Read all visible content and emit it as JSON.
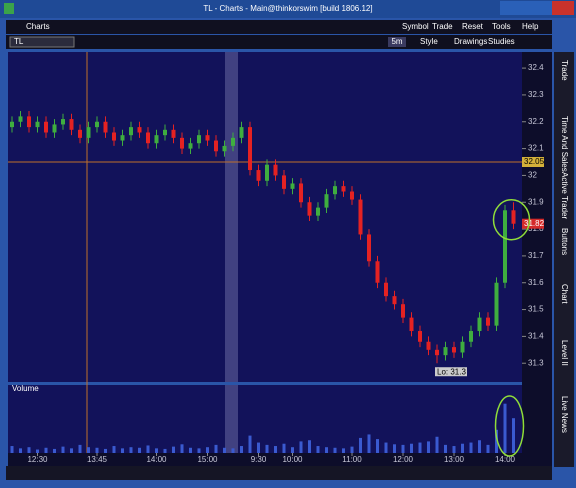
{
  "window": {
    "title": "TL - Charts - Main@thinkorswim [build 1806.12]",
    "tab": "Charts",
    "menu": [
      "Symbol",
      "Trade",
      "Reset",
      "Tools",
      "Help"
    ],
    "symbol": "TL",
    "period": "5m",
    "buttons": [
      "Style",
      "Drawings",
      "Studies"
    ],
    "side_tabs": [
      "Trade",
      "Time And Sales",
      "Active Trader",
      "Buttons",
      "Chart",
      "Level II",
      "Live News"
    ]
  },
  "chart_data": {
    "type": "candlestick",
    "color_up": "#3fae3f",
    "color_down": "#e52222",
    "open": [
      32.18,
      32.2,
      32.22,
      32.18,
      32.2,
      32.16,
      32.19,
      32.21,
      32.17,
      32.14,
      32.18,
      32.2,
      32.16,
      32.13,
      32.15,
      32.18,
      32.16,
      32.12,
      32.15,
      32.17,
      32.14,
      32.1,
      32.12,
      32.15,
      32.13,
      32.09,
      32.11,
      32.14,
      32.18,
      32.02,
      31.98,
      32.04,
      32.0,
      31.95,
      31.97,
      31.9,
      31.85,
      31.88,
      31.93,
      31.96,
      31.94,
      31.91,
      31.78,
      31.68,
      31.6,
      31.55,
      31.52,
      31.47,
      31.42,
      31.38,
      31.35,
      31.33,
      31.36,
      31.34,
      31.38,
      31.42,
      31.47,
      31.44,
      31.6,
      31.87
    ],
    "high": [
      32.22,
      32.24,
      32.24,
      32.22,
      32.22,
      32.21,
      32.23,
      32.23,
      32.19,
      32.2,
      32.22,
      32.22,
      32.18,
      32.17,
      32.2,
      32.2,
      32.18,
      32.17,
      32.19,
      32.19,
      32.16,
      32.14,
      32.17,
      32.17,
      32.15,
      32.13,
      32.16,
      32.2,
      32.2,
      32.04,
      32.06,
      32.06,
      32.02,
      31.99,
      31.99,
      31.92,
      31.9,
      31.95,
      31.98,
      31.98,
      31.96,
      31.93,
      31.8,
      31.7,
      31.62,
      31.57,
      31.54,
      31.49,
      31.44,
      31.4,
      31.37,
      31.38,
      31.38,
      31.4,
      31.44,
      31.49,
      31.49,
      31.62,
      31.89,
      31.9
    ],
    "low": [
      32.16,
      32.18,
      32.16,
      32.16,
      32.14,
      32.14,
      32.17,
      32.15,
      32.12,
      32.12,
      32.16,
      32.14,
      32.11,
      32.11,
      32.13,
      32.14,
      32.1,
      32.1,
      32.13,
      32.12,
      32.08,
      32.08,
      32.1,
      32.11,
      32.07,
      32.07,
      32.09,
      32.12,
      32.0,
      31.96,
      31.96,
      31.98,
      31.93,
      31.93,
      31.88,
      31.83,
      31.83,
      31.86,
      31.91,
      31.92,
      31.89,
      31.76,
      31.66,
      31.58,
      31.53,
      31.5,
      31.45,
      31.4,
      31.36,
      31.33,
      31.3,
      31.31,
      31.32,
      31.32,
      31.36,
      31.4,
      31.42,
      31.42,
      31.58,
      31.8
    ],
    "close": [
      32.2,
      32.22,
      32.18,
      32.2,
      32.16,
      32.19,
      32.21,
      32.17,
      32.14,
      32.18,
      32.2,
      32.16,
      32.13,
      32.15,
      32.18,
      32.16,
      32.12,
      32.15,
      32.17,
      32.14,
      32.1,
      32.12,
      32.15,
      32.13,
      32.09,
      32.11,
      32.14,
      32.18,
      32.02,
      31.98,
      32.04,
      32.0,
      31.95,
      31.97,
      31.9,
      31.85,
      31.88,
      31.93,
      31.96,
      31.94,
      31.91,
      31.78,
      31.68,
      31.6,
      31.55,
      31.52,
      31.47,
      31.42,
      31.38,
      31.35,
      31.33,
      31.36,
      31.34,
      31.38,
      31.42,
      31.47,
      31.44,
      31.6,
      31.87,
      31.82
    ],
    "volume_title": "Volume",
    "volume": [
      12,
      8,
      10,
      6,
      9,
      7,
      11,
      8,
      14,
      10,
      9,
      7,
      12,
      8,
      10,
      9,
      13,
      8,
      7,
      11,
      15,
      9,
      8,
      10,
      14,
      9,
      8,
      12,
      30,
      18,
      14,
      12,
      16,
      10,
      20,
      22,
      12,
      10,
      9,
      8,
      11,
      26,
      32,
      24,
      18,
      15,
      14,
      16,
      18,
      20,
      28,
      14,
      12,
      16,
      18,
      22,
      14,
      40,
      85,
      60
    ],
    "volume_ylim": [
      0,
      100
    ],
    "ylim": [
      31.23,
      32.46
    ],
    "yticks": [
      32.4,
      32.3,
      32.2,
      32.1,
      32,
      31.9,
      31.8,
      31.7,
      31.6,
      31.5,
      31.4,
      31.3
    ],
    "price_line": 32.05,
    "last_price": 31.82,
    "low_label": "Lo: 31.3",
    "xticks": [
      {
        "value": 3,
        "label": "12:30"
      },
      {
        "value": 10,
        "label": "13:45"
      },
      {
        "value": 17,
        "label": "14:00"
      },
      {
        "value": 23,
        "label": "15:00"
      },
      {
        "value": 29,
        "label": "9:30"
      },
      {
        "value": 33,
        "label": "10:00"
      },
      {
        "value": 40,
        "label": "11:00"
      },
      {
        "value": 46,
        "label": "12:00"
      },
      {
        "value": 52,
        "label": "13:00"
      },
      {
        "value": 58,
        "label": "14:00"
      }
    ]
  }
}
